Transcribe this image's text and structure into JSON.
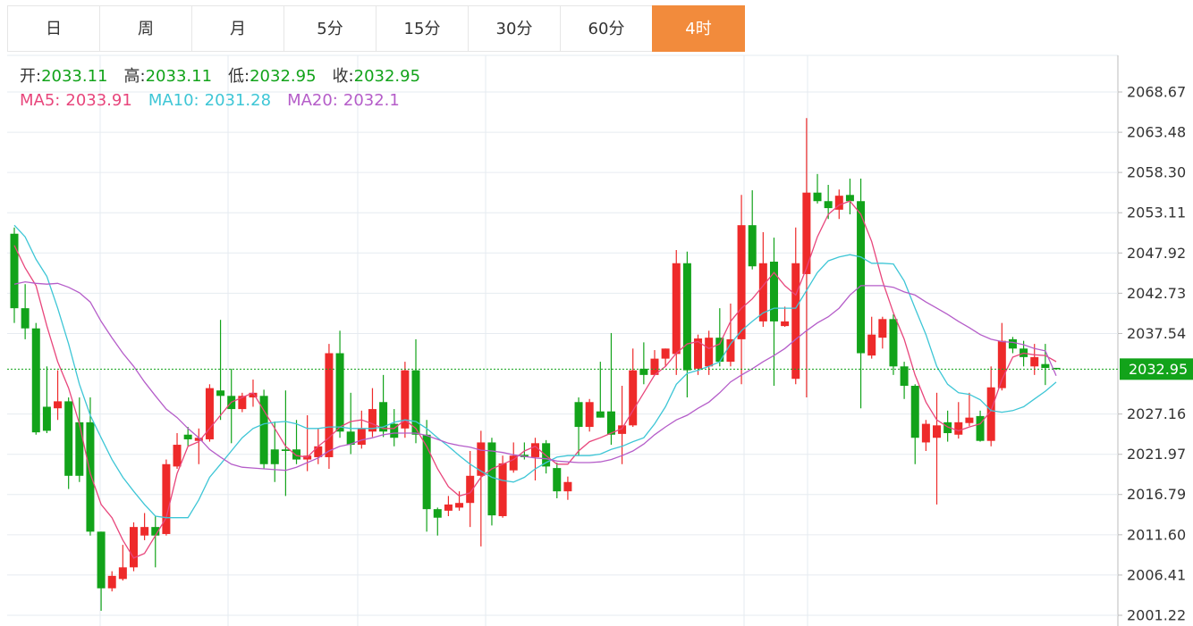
{
  "chart_data": {
    "type": "candlestick",
    "tabs": [
      "日",
      "周",
      "月",
      "5分",
      "15分",
      "30分",
      "60分",
      "4时"
    ],
    "active_tab": 7,
    "ohlc_labels": [
      "开:",
      "高:",
      "低:",
      "收:"
    ],
    "up_color": "#ee2a2a",
    "down_color": "#12a31a",
    "grid": true,
    "ylim": [
      1999.84,
      2073.39
    ],
    "yticks": [
      2001.22,
      2006.41,
      {
        "value": 2011.6,
        "label": "2011.60"
      },
      2016.79,
      2021.97,
      2027.16,
      2037.54,
      2042.73,
      2047.92,
      2053.11,
      {
        "value": 2058.3,
        "label": "2058.30"
      },
      2063.48,
      2068.67
    ],
    "candles": [
      {
        "o": 2050.4,
        "h": 2051.2,
        "l": 2038.9,
        "c": 2040.8
      },
      {
        "o": 2040.8,
        "h": 2043.9,
        "l": 2036.8,
        "c": 2038.2
      },
      {
        "o": 2038.2,
        "h": 2038.9,
        "l": 2024.5,
        "c": 2024.8
      },
      {
        "o": 2028.1,
        "h": 2033.3,
        "l": 2024.7,
        "c": 2025.0
      },
      {
        "o": 2027.9,
        "h": 2032.8,
        "l": 2026.4,
        "c": 2028.8
      },
      {
        "o": 2028.8,
        "h": 2029.3,
        "l": 2017.5,
        "c": 2019.2
      },
      {
        "o": 2026.1,
        "h": 2029.3,
        "l": 2018.4,
        "c": 2019.2
      },
      {
        "o": 2026.1,
        "h": 2029.3,
        "l": 2011.5,
        "c": 2012.0
      },
      {
        "o": 2012.0,
        "h": 2012.0,
        "l": 2001.8,
        "c": 2004.7
      },
      {
        "o": 2004.7,
        "h": 2006.9,
        "l": 2004.3,
        "c": 2006.3
      },
      {
        "o": 2005.9,
        "h": 2010.3,
        "l": 2005.7,
        "c": 2007.4
      },
      {
        "o": 2007.4,
        "h": 2013.2,
        "l": 2006.9,
        "c": 2012.6
      },
      {
        "o": 2011.5,
        "h": 2014.4,
        "l": 2010.9,
        "c": 2012.6
      },
      {
        "o": 2012.6,
        "h": 2014.0,
        "l": 2007.4,
        "c": 2011.5
      },
      {
        "o": 2011.7,
        "h": 2021.3,
        "l": 2011.5,
        "c": 2020.7
      },
      {
        "o": 2020.4,
        "h": 2024.7,
        "l": 2020.1,
        "c": 2023.2
      },
      {
        "o": 2024.5,
        "h": 2025.5,
        "l": 2023.0,
        "c": 2023.9
      },
      {
        "o": 2023.7,
        "h": 2025.3,
        "l": 2020.7,
        "c": 2024.1
      },
      {
        "o": 2023.9,
        "h": 2031.0,
        "l": 2023.6,
        "c": 2030.5
      },
      {
        "o": 2030.2,
        "h": 2039.3,
        "l": 2026.4,
        "c": 2029.5
      },
      {
        "o": 2029.5,
        "h": 2033.0,
        "l": 2023.4,
        "c": 2027.8
      },
      {
        "o": 2027.8,
        "h": 2029.9,
        "l": 2027.4,
        "c": 2029.5
      },
      {
        "o": 2029.3,
        "h": 2031.6,
        "l": 2028.1,
        "c": 2029.9
      },
      {
        "o": 2029.5,
        "h": 2030.3,
        "l": 2020.1,
        "c": 2020.7
      },
      {
        "o": 2022.6,
        "h": 2026.2,
        "l": 2018.4,
        "c": 2020.7
      },
      {
        "o": 2022.6,
        "h": 2030.2,
        "l": 2016.6,
        "c": 2022.4
      },
      {
        "o": 2022.6,
        "h": 2026.4,
        "l": 2020.7,
        "c": 2021.3
      },
      {
        "o": 2021.3,
        "h": 2027.0,
        "l": 2019.8,
        "c": 2021.8
      },
      {
        "o": 2021.6,
        "h": 2025.3,
        "l": 2020.7,
        "c": 2023.0
      },
      {
        "o": 2021.6,
        "h": 2036.2,
        "l": 2020.1,
        "c": 2035.0
      },
      {
        "o": 2035.0,
        "h": 2037.9,
        "l": 2024.1,
        "c": 2024.9
      },
      {
        "o": 2024.9,
        "h": 2029.9,
        "l": 2022.0,
        "c": 2023.2
      },
      {
        "o": 2023.2,
        "h": 2027.6,
        "l": 2022.7,
        "c": 2025.3
      },
      {
        "o": 2024.9,
        "h": 2030.5,
        "l": 2024.2,
        "c": 2027.8
      },
      {
        "o": 2028.7,
        "h": 2032.2,
        "l": 2024.2,
        "c": 2024.9
      },
      {
        "o": 2025.9,
        "h": 2027.8,
        "l": 2023.0,
        "c": 2024.1
      },
      {
        "o": 2025.3,
        "h": 2033.9,
        "l": 2024.1,
        "c": 2032.8
      },
      {
        "o": 2032.8,
        "h": 2036.8,
        "l": 2023.4,
        "c": 2024.5
      },
      {
        "o": 2024.5,
        "h": 2026.4,
        "l": 2012.0,
        "c": 2014.9
      },
      {
        "o": 2014.9,
        "h": 2015.1,
        "l": 2011.5,
        "c": 2013.8
      },
      {
        "o": 2014.7,
        "h": 2016.6,
        "l": 2014.0,
        "c": 2015.5
      },
      {
        "o": 2015.1,
        "h": 2017.2,
        "l": 2014.7,
        "c": 2015.7
      },
      {
        "o": 2015.7,
        "h": 2022.4,
        "l": 2012.6,
        "c": 2019.2
      },
      {
        "o": 2019.2,
        "h": 2025.0,
        "l": 2010.1,
        "c": 2023.5
      },
      {
        "o": 2023.5,
        "h": 2024.1,
        "l": 2012.8,
        "c": 2014.1
      },
      {
        "o": 2014.0,
        "h": 2021.8,
        "l": 2013.8,
        "c": 2020.8
      },
      {
        "o": 2019.9,
        "h": 2023.5,
        "l": 2019.6,
        "c": 2021.8
      },
      {
        "o": 2021.9,
        "h": 2023.5,
        "l": 2021.3,
        "c": 2021.6
      },
      {
        "o": 2021.6,
        "h": 2024.1,
        "l": 2018.6,
        "c": 2023.4
      },
      {
        "o": 2023.4,
        "h": 2023.8,
        "l": 2019.5,
        "c": 2020.4
      },
      {
        "o": 2020.2,
        "h": 2020.9,
        "l": 2016.3,
        "c": 2017.2
      },
      {
        "o": 2017.2,
        "h": 2019.1,
        "l": 2016.1,
        "c": 2018.4
      },
      {
        "o": 2028.7,
        "h": 2029.3,
        "l": 2021.8,
        "c": 2025.5
      },
      {
        "o": 2025.5,
        "h": 2029.1,
        "l": 2024.9,
        "c": 2028.7
      },
      {
        "o": 2027.5,
        "h": 2033.9,
        "l": 2026.7,
        "c": 2026.7
      },
      {
        "o": 2027.5,
        "h": 2037.6,
        "l": 2023.2,
        "c": 2024.5
      },
      {
        "o": 2024.6,
        "h": 2030.8,
        "l": 2020.7,
        "c": 2025.7
      },
      {
        "o": 2025.7,
        "h": 2035.6,
        "l": 2025.5,
        "c": 2032.8
      },
      {
        "o": 2033.0,
        "h": 2036.4,
        "l": 2031.0,
        "c": 2032.2
      },
      {
        "o": 2032.2,
        "h": 2035.4,
        "l": 2032.2,
        "c": 2034.3
      },
      {
        "o": 2034.3,
        "h": 2035.6,
        "l": 2033.3,
        "c": 2035.6
      },
      {
        "o": 2034.9,
        "h": 2048.3,
        "l": 2032.2,
        "c": 2046.6
      },
      {
        "o": 2046.6,
        "h": 2048.1,
        "l": 2029.3,
        "c": 2032.8
      },
      {
        "o": 2033.0,
        "h": 2037.4,
        "l": 2032.2,
        "c": 2036.9
      },
      {
        "o": 2033.3,
        "h": 2037.9,
        "l": 2032.2,
        "c": 2037.0
      },
      {
        "o": 2037.0,
        "h": 2040.8,
        "l": 2033.3,
        "c": 2033.9
      },
      {
        "o": 2033.9,
        "h": 2041.4,
        "l": 2033.3,
        "c": 2036.8
      },
      {
        "o": 2036.8,
        "h": 2055.4,
        "l": 2031.0,
        "c": 2051.5
      },
      {
        "o": 2051.5,
        "h": 2056.0,
        "l": 2045.8,
        "c": 2046.2
      },
      {
        "o": 2039.1,
        "h": 2050.6,
        "l": 2038.4,
        "c": 2046.6
      },
      {
        "o": 2046.8,
        "h": 2049.9,
        "l": 2030.8,
        "c": 2039.1
      },
      {
        "o": 2038.5,
        "h": 2041.0,
        "l": 2038.4,
        "c": 2039.1
      },
      {
        "o": 2031.7,
        "h": 2051.2,
        "l": 2031.0,
        "c": 2046.6
      },
      {
        "o": 2045.2,
        "h": 2065.3,
        "l": 2029.3,
        "c": 2055.7
      },
      {
        "o": 2055.7,
        "h": 2058.1,
        "l": 2054.3,
        "c": 2054.6
      },
      {
        "o": 2054.6,
        "h": 2056.7,
        "l": 2052.3,
        "c": 2053.7
      },
      {
        "o": 2053.5,
        "h": 2056.1,
        "l": 2052.3,
        "c": 2055.3
      },
      {
        "o": 2055.4,
        "h": 2057.5,
        "l": 2052.9,
        "c": 2054.6
      },
      {
        "o": 2054.6,
        "h": 2057.5,
        "l": 2027.9,
        "c": 2035.0
      },
      {
        "o": 2034.7,
        "h": 2039.7,
        "l": 2034.3,
        "c": 2037.4
      },
      {
        "o": 2037.0,
        "h": 2039.7,
        "l": 2035.6,
        "c": 2039.4
      },
      {
        "o": 2039.4,
        "h": 2040.0,
        "l": 2032.2,
        "c": 2033.3
      },
      {
        "o": 2033.3,
        "h": 2033.9,
        "l": 2029.1,
        "c": 2030.8
      },
      {
        "o": 2030.8,
        "h": 2031.0,
        "l": 2020.7,
        "c": 2024.1
      },
      {
        "o": 2023.5,
        "h": 2026.4,
        "l": 2022.4,
        "c": 2025.9
      },
      {
        "o": 2024.1,
        "h": 2029.9,
        "l": 2015.5,
        "c": 2025.7
      },
      {
        "o": 2026.1,
        "h": 2027.6,
        "l": 2023.6,
        "c": 2024.7
      },
      {
        "o": 2024.5,
        "h": 2028.7,
        "l": 2024.0,
        "c": 2026.1
      },
      {
        "o": 2026.0,
        "h": 2029.9,
        "l": 2025.6,
        "c": 2026.7
      },
      {
        "o": 2026.9,
        "h": 2027.6,
        "l": 2023.6,
        "c": 2023.7
      },
      {
        "o": 2023.7,
        "h": 2033.3,
        "l": 2023.0,
        "c": 2030.6
      },
      {
        "o": 2030.5,
        "h": 2038.9,
        "l": 2030.2,
        "c": 2036.6
      },
      {
        "o": 2036.8,
        "h": 2037.1,
        "l": 2035.0,
        "c": 2035.6
      },
      {
        "o": 2035.6,
        "h": 2036.6,
        "l": 2033.3,
        "c": 2034.5
      },
      {
        "o": 2033.3,
        "h": 2036.2,
        "l": 2032.2,
        "c": 2034.5
      },
      {
        "o": 2033.6,
        "h": 2036.2,
        "l": 2030.9,
        "c": 2033.1
      },
      {
        "o": 2033.11,
        "h": 2033.11,
        "l": 2032.95,
        "c": 2032.95
      }
    ],
    "series": [
      {
        "name": "MA5:",
        "color": "#e8467c",
        "values": [
          2048.9,
          2046.0,
          2043.7,
          2038.5,
          2033.9,
          2030.5,
          2025.9,
          2019.5,
          2015.5,
          2013.8,
          2010.9,
          2008.6,
          2009.2,
          2011.5,
          2013.8,
          2019.5,
          2023.0,
          2023.6,
          2025.3,
          2027.0,
          2028.7,
          2029.3,
          2029.9,
          2027.6,
          2025.3,
          2023.0,
          2021.8,
          2021.6,
          2023.0,
          2024.1,
          2025.5,
          2026.2,
          2026.4,
          2025.9,
          2025.3,
          2025.3,
          2026.4,
          2025.3,
          2023.0,
          2020.1,
          2017.8,
          2016.6,
          2017.0,
          2019.0,
          2020.1,
          2020.7,
          2021.3,
          2022.4,
          2023.0,
          2021.8,
          2020.7,
          2020.7,
          2022.4,
          2023.6,
          2024.1,
          2024.7,
          2025.3,
          2027.6,
          2029.9,
          2032.2,
          2033.3,
          2035.0,
          2036.2,
          2036.5,
          2035.6,
          2036.2,
          2039.1,
          2040.8,
          2042.0,
          2043.7,
          2045.4,
          2043.7,
          2042.5,
          2046.0,
          2050.0,
          2052.9,
          2054.1,
          2054.6,
          2052.9,
          2049.4,
          2044.3,
          2040.2,
          2036.8,
          2032.2,
          2028.7,
          2026.4,
          2025.5,
          2025.0,
          2025.5,
          2025.9,
          2027.6,
          2031.6,
          2034.5,
          2035.0,
          2034.8,
          2034.7,
          2033.91
        ]
      },
      {
        "name": "MA10:",
        "color": "#3ec6d6",
        "values": [
          2051.5,
          2050.0,
          2047.1,
          2044.9,
          2040.8,
          2036.2,
          2031.0,
          2027.0,
          2024.1,
          2021.3,
          2019.0,
          2017.2,
          2015.5,
          2014.0,
          2013.8,
          2013.8,
          2013.8,
          2016.1,
          2019.0,
          2020.7,
          2022.4,
          2024.1,
          2025.3,
          2025.9,
          2026.1,
          2026.2,
          2025.9,
          2025.3,
          2025.3,
          2025.5,
          2025.5,
          2025.3,
          2025.3,
          2025.3,
          2025.5,
          2026.1,
          2026.4,
          2026.2,
          2025.3,
          2024.1,
          2023.0,
          2021.8,
          2020.7,
          2019.8,
          2019.0,
          2018.6,
          2018.4,
          2019.0,
          2020.1,
          2020.9,
          2021.6,
          2021.8,
          2021.8,
          2021.8,
          2022.0,
          2022.6,
          2023.0,
          2023.6,
          2024.1,
          2025.9,
          2028.1,
          2031.0,
          2032.4,
          2032.8,
          2033.3,
          2033.9,
          2036.2,
          2037.9,
          2039.1,
          2040.2,
          2040.8,
          2040.8,
          2040.8,
          2043.1,
          2045.4,
          2046.9,
          2047.4,
          2047.7,
          2047.4,
          2046.6,
          2046.6,
          2046.5,
          2044.3,
          2040.8,
          2037.4,
          2033.3,
          2031.0,
          2029.9,
          2029.7,
          2029.0,
          2027.6,
          2027.4,
          2027.6,
          2028.1,
          2029.1,
          2030.1,
          2031.28
        ]
      },
      {
        "name": "MA20:",
        "color": "#b55dc9",
        "values": [
          2043.9,
          2044.2,
          2044.0,
          2043.9,
          2044.0,
          2043.5,
          2042.8,
          2041.6,
          2039.1,
          2037.0,
          2035.0,
          2033.3,
          2031.3,
          2029.5,
          2027.8,
          2026.7,
          2025.3,
          2024.1,
          2022.6,
          2021.6,
          2020.7,
          2020.3,
          2020.2,
          2020.1,
          2020.0,
          2019.9,
          2020.3,
          2020.9,
          2021.5,
          2022.4,
          2023.0,
          2023.3,
          2023.8,
          2024.1,
          2024.5,
          2024.7,
          2024.7,
          2024.7,
          2024.4,
          2023.9,
          2023.4,
          2023.1,
          2022.9,
          2022.5,
          2022.4,
          2022.2,
          2021.9,
          2021.7,
          2021.5,
          2021.4,
          2021.1,
          2021.0,
          2020.9,
          2020.9,
          2021.0,
          2021.3,
          2021.8,
          2022.4,
          2023.3,
          2024.5,
          2025.5,
          2026.4,
          2027.0,
          2027.9,
          2028.7,
          2029.9,
          2031.3,
          2032.2,
          2033.0,
          2033.9,
          2034.7,
          2035.6,
          2036.8,
          2037.9,
          2038.9,
          2039.7,
          2040.8,
          2042.5,
          2043.7,
          2043.7,
          2043.7,
          2043.5,
          2042.9,
          2042.5,
          2041.6,
          2040.8,
          2040.0,
          2039.1,
          2038.3,
          2037.4,
          2036.8,
          2036.5,
          2036.4,
          2036.1,
          2035.6,
          2035.3,
          2032.1
        ]
      }
    ]
  }
}
